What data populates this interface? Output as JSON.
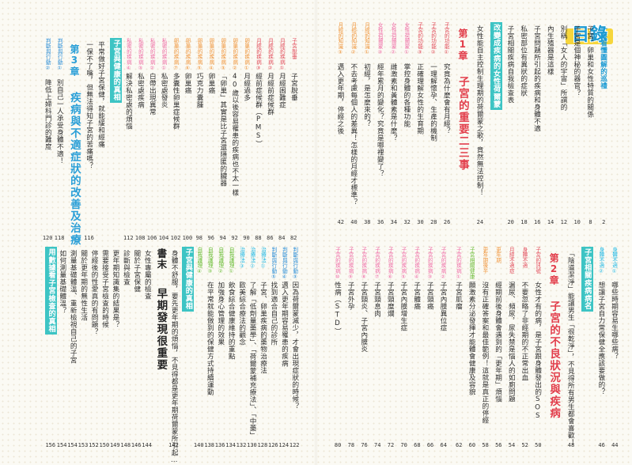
{
  "mulu": "目錄",
  "right_top": {
    "s0": {
      "pre": "一眼看懂圖解的巡禮",
      "page": "2"
    },
    "s1": {
      "pre": "子宮、卵巢和女性特質的關係",
      "page": "8"
    },
    "s2": {
      "pre": "子宮是個神秘的器官？",
      "page": "10"
    },
    "s3": {
      "pre": "別稱「女人的宇宙」所謂的",
      "page": "12"
    },
    "s4": {
      "pre": "內生殖器是這樣",
      "page": "14"
    },
    "s5": {
      "pre": "子宮問題所引起的疾病和身體不適",
      "page": "16"
    },
    "s6": {
      "pre": "私密部位有異狀的症狀",
      "page": "18"
    },
    "s7": {
      "pre": "子宮相關疾病自我檢查表",
      "page": "20"
    },
    "h1": "改變成疾病的女性荷爾蒙",
    "h1_text": "女性能自主控制生理期的荷爾蒙之歌，竟然無法控制！",
    "h1_page": "24",
    "ch1_label": "第1章",
    "ch1_title": "子宮的重要二三事",
    "c1": {
      "tag": "子宮的功能①",
      "text": "究竟為什麼會有月經？",
      "page": "26"
    },
    "c2": {
      "tag": "子宮的功能②",
      "text": "一理解懷孕、生產的機制",
      "page": "28"
    },
    "c3": {
      "tag": "子宮的功能③",
      "text": "正確理解女性的生育期",
      "page": "30"
    },
    "c4": {
      "tag": "女性荷爾蒙①",
      "text": "掌控身體的各種功能",
      "page": "32"
    },
    "c5": {
      "tag": "女性荷爾蒙②",
      "text": "雌激素和黃體素是什麼？",
      "page": "34"
    },
    "c6": {
      "tag": "女性荷爾蒙③",
      "text": "經年累月的變化？究竟是哪裡變了？",
      "page": "36"
    },
    "c7": {
      "tag": "月經的知識①",
      "text": "初經，是怎麼來的？",
      "page": "38"
    },
    "c8": {
      "tag": "月經的知識②",
      "text": "不去考慮每個人的差異！怎樣的月經才標準？",
      "page": "40"
    },
    "c9": {
      "tag": "月經的知識③",
      "text": "邁入更年期，停經之後",
      "page": "42"
    }
  },
  "right_bot": {
    "b1": {
      "tag": "身體不適①",
      "text": "哪些時期容易生哪些病？",
      "page": "44"
    },
    "b2": {
      "tag": "身體不適②",
      "text": "想讓子宮自力常保健全應該要做的？",
      "page": "46"
    },
    "h2": "子宮相關疾病病名",
    "h2_text": "「陰道潔淨」能讓男生「很乾淨」，不見得所有男生都會喜歡！",
    "h2_page": "48",
    "ch2_label": "第2章",
    "ch2_title": "子宮的不良狀況與疾病",
    "d1": {
      "tag": "子宮的訊號",
      "text": "女性才有的病，是子宮跟身體發出的SOS",
      "page": "50"
    },
    "d2": {
      "tag": "身體不適",
      "text": "不要忽略了非經期的不正常出血",
      "page": "52"
    },
    "d3": {
      "tag": "月經不適症",
      "text": "漏尿、頻尿，尿失禁是惱人的如廁問題",
      "page": "54"
    },
    "d4": {
      "tag": "更年期",
      "text": "經期前後身體會遇到的「更年期」煩惱",
      "page": "56"
    },
    "d5": {
      "tag": "更年期後半",
      "text": "沒有正確答案和最佳範例！這就是真正的停經",
      "page": "58"
    },
    "d6": {
      "tag": "子宮相關健康",
      "text": "願激素分泌發揮才能體會健康及容貌",
      "page": "60"
    },
    "e1": {
      "tag": "子宮的疾病①",
      "text": "子宮肌瘤",
      "page": "62"
    },
    "e2": {
      "tag": "子宮的疾病②",
      "text": "子宮內膜異位症",
      "page": "64"
    },
    "e3": {
      "tag": "子宮的疾病③",
      "text": "子宮頸癌",
      "page": "66"
    },
    "e4": {
      "tag": "子宮的疾病④",
      "text": "子宮體癌",
      "page": "68"
    },
    "e5": {
      "tag": "子宮的疾病⑤",
      "text": "子宮內膜增生症",
      "page": "70"
    },
    "e6": {
      "tag": "子宮的疾病⑥",
      "text": "子宮頸糜爛",
      "page": "72"
    },
    "e7": {
      "tag": "子宮的疾病⑦",
      "text": "子宮頸息肉",
      "page": "74"
    },
    "e8": {
      "tag": "子宮的疾病⑧",
      "text": "子宮頸炎、子宮內膜炎",
      "page": "76"
    },
    "e9": {
      "tag": "子宮的疾病⑨",
      "text": "子宮外孕",
      "page": "78"
    },
    "e10": {
      "tag": "子宮的疾病⑩",
      "text": "性病（STD）",
      "page": "80"
    }
  },
  "left_top": {
    "f1": {
      "tag": "子宮脫垂",
      "text": "子宮脫垂",
      "page": "82"
    },
    "f2": {
      "tag": "月經的疾病①",
      "text": "月經困難症",
      "page": "84"
    },
    "f3": {
      "tag": "月經的疾病②",
      "text": "月經前症候群",
      "page": "86"
    },
    "f4": {
      "tag": "月經的疾病③",
      "text": "經前症候群（PMS）",
      "page": "88"
    },
    "f5": {
      "tag": "卵巢的疾病①",
      "text": "月經過多",
      "page": "90"
    },
    "f6": {
      "tag": "卵巢的疾病②",
      "text": "40歲以後容易罹患的疾病也不太一樣",
      "page": "92"
    },
    "f7": {
      "tag": "卵巢的疾病③",
      "text": "「卵巢」其實是比子宮還隱匿的臟器",
      "page": "94"
    },
    "f8": {
      "tag": "卵巢的疾病④",
      "text": "卵巢癌",
      "page": "96"
    },
    "f9": {
      "tag": "卵巢的疾病⑤",
      "text": "巧克力囊腫",
      "page": "98"
    },
    "f10": {
      "tag": "卵巢的疾病⑥",
      "text": "卵巢癌",
      "page": "100"
    },
    "f11": {
      "tag": "卵巢的疾病⑦",
      "text": "多囊性卵巢症候群",
      "page": "102"
    },
    "f12": {
      "tag": "私密的疾病①",
      "text": "私密處發炎",
      "page": "104"
    },
    "f13": {
      "tag": "私密的疾病②",
      "text": "白帶出現異常",
      "page": "106"
    },
    "f14": {
      "tag": "私密的疾病③",
      "text": "私密處疾病",
      "page": "108"
    },
    "f15": {
      "tag": "私密的疾病④",
      "text": "解決私密處的煩惱",
      "page": "112"
    },
    "h3": "子宮與健康的真相",
    "h3_text": "平常做好子宮保健，就能緩和經痛",
    "h3_page": "",
    "h3_text2": "一保不了嘴，但無法得知子宮的苦痛嗎？",
    "h3_page2": "116",
    "ch3_label": "第3章",
    "ch3_title": "疾病與不適症狀的改善及治療",
    "g1": {
      "tag": "判斷與行動①",
      "text": "別自己一人承受身體不適！",
      "page": "118"
    },
    "g2": {
      "tag": "判斷與行動②",
      "text": "降低上婦科門診的難度",
      "page": "120"
    }
  },
  "left_bot": {
    "k1": {
      "tag": "判斷與行動③",
      "text": "因為荷爾蒙減少，才會出現症狀的時候？",
      "page": "122"
    },
    "k2": {
      "tag": "判斷與行動④",
      "text": "邁入更年期容易罹患的疾病",
      "page": "124"
    },
    "k3": {
      "tag": "判斷與行動⑤",
      "text": "找到適合自己的診所",
      "page": "126"
    },
    "k4": {
      "tag": "治療法①",
      "text": "子宮、卵巢疾病的藥物治療法",
      "page": "128"
    },
    "k5": {
      "tag": "治療法②",
      "text": "了解「低劑量藥學」、「荷爾蒙補充療法」、「中藥」",
      "page": "130"
    },
    "k6": {
      "tag": "治療法③",
      "text": "歐美綜合療法的觀念",
      "page": "132"
    },
    "k7": {
      "tag": "自我護理①",
      "text": "飲食綜合健康維持的重點",
      "page": "134"
    },
    "k8": {
      "tag": "自我護理②",
      "text": "加強身心管理的效果",
      "page": "136"
    },
    "k9": {
      "tag": "自我護理③",
      "text": "在平常就能做到的保健方式持續運動",
      "page": "138"
    },
    "k10": {
      "tag": "自我護理④",
      "text": "",
      "page": "140"
    },
    "h4": "子宮與健康的真相",
    "h4_text": "身體不舒服，要先更年期的煩惱，不見得都是更年期荷爾蒙所引起……",
    "h4_page": "142",
    "book_label": "書末",
    "book_title": "早期發現很重要",
    "m1": {
      "text": "女性專屬的檢查",
      "page": "144"
    },
    "m2": {
      "text": "關於子宮保健",
      "page": "146"
    },
    "m3": {
      "text": "診斷與檢查",
      "page": "148"
    },
    "m4": {
      "text": "更年期知識集的結果是？",
      "page": "149"
    },
    "m5": {
      "text": "需要接受子宮檢查的時候",
      "page": "150"
    },
    "m6": {
      "text": "停經後的性愛真的有問題？",
      "page": "152"
    },
    "m7": {
      "text": "關於更年期的無性生活",
      "page": "153"
    },
    "m8": {
      "text": "測量基礎體溫、重新檢視自己的子宮",
      "page": "154"
    },
    "m9": {
      "text": "如何測量基礎體溫？",
      "page": "154"
    },
    "h5": "用數據看子宮檢查的真相",
    "h5_page": "156"
  }
}
